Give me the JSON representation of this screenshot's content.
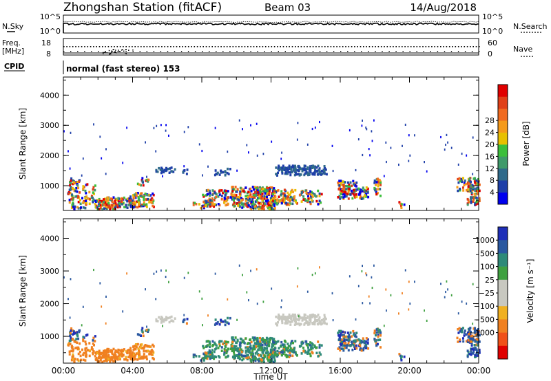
{
  "header": {
    "station": "Zhongshan Station (fitACF)",
    "beam": "Beam 03",
    "date": "14/Aug/2018"
  },
  "aux_panels": {
    "nsky_label": "N.Sky",
    "nsearch_label": "N.Search",
    "freq_label_1": "Freq.",
    "freq_label_2": "[MHz]",
    "nave_label": "Nave",
    "cpid_label": "CPID",
    "cpid_text": "normal (fast stereo) 153",
    "noise_ticks": [
      "10^5",
      "10^0"
    ],
    "freq_ticks": [
      "18",
      "8"
    ],
    "nave_ticks": [
      "60",
      "0"
    ]
  },
  "chart_data": [
    {
      "type": "heatmap",
      "name": "power",
      "ylabel": "Slant Range [km]",
      "xlabel": "",
      "ylim": [
        180,
        4600
      ],
      "xlim_hours": [
        0,
        24
      ],
      "yticks": [
        "1000",
        "2000",
        "3000",
        "4000"
      ],
      "colorbar": {
        "label": "Power [dB]",
        "ticks": [
          "4",
          "8",
          "12",
          "16",
          "20",
          "24",
          "28"
        ],
        "colors": [
          "#0000ee",
          "#1e3fa8",
          "#2f6a8a",
          "#3f9a6a",
          "#3bbf3b",
          "#e8c000",
          "#f59a1a",
          "#f06a20",
          "#e04018",
          "#e00000"
        ]
      }
    },
    {
      "type": "heatmap",
      "name": "velocity",
      "ylabel": "Slant Range [km]",
      "xlabel": "Time UT",
      "ylim": [
        180,
        4600
      ],
      "xlim_hours": [
        0,
        24
      ],
      "yticks": [
        "1000",
        "2000",
        "3000",
        "4000"
      ],
      "xticks": [
        "00:00",
        "04:00",
        "08:00",
        "12:00",
        "16:00",
        "20:00",
        "00:00"
      ],
      "colorbar": {
        "label": "Velocity [m s⁻¹]",
        "ticks": [
          "1000",
          "500",
          "100",
          "25",
          "−25",
          "−100",
          "−500",
          "−1000"
        ],
        "colors": [
          "#1f2fb8",
          "#2a58a0",
          "#2e8a78",
          "#3fa040",
          "#c8c8c0",
          "#c8c8c0",
          "#f0b020",
          "#f08020",
          "#f05018",
          "#e00000"
        ]
      }
    }
  ]
}
